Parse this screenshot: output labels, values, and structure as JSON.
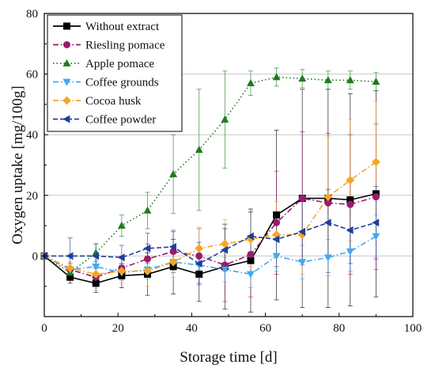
{
  "chart_data": {
    "type": "line",
    "xlabel": "Storage time [d]",
    "ylabel": "Oxygen uptake [mg/100g]",
    "xlim": [
      0,
      100
    ],
    "ylim": [
      -20,
      80
    ],
    "x_ticks": [
      0,
      20,
      40,
      60,
      80,
      100
    ],
    "y_ticks": [
      0,
      20,
      40,
      60,
      80
    ],
    "grid": "horizontal",
    "legend_position": "top-left",
    "series": [
      {
        "name": "Without extract",
        "color": "#000000",
        "marker": "square",
        "line_style": "solid",
        "x": [
          0,
          7,
          14,
          21,
          28,
          35,
          42,
          49,
          56,
          63,
          70,
          77,
          83,
          90
        ],
        "y": [
          0,
          -7,
          -9,
          -6.5,
          -6,
          -3.5,
          -6,
          -3.5,
          -1.5,
          13.5,
          19,
          19,
          18.5,
          20.5
        ],
        "err": [
          0,
          2,
          3,
          4,
          7,
          9,
          9,
          14,
          17,
          28,
          36,
          36,
          35,
          34
        ]
      },
      {
        "name": "Riesling pomace",
        "color": "#9b1b6e",
        "marker": "circle",
        "line_style": "dashdot",
        "x": [
          0,
          7,
          14,
          21,
          28,
          35,
          42,
          49,
          56,
          63,
          70,
          77,
          83,
          90
        ],
        "y": [
          0,
          -4.5,
          -7,
          -4,
          -1,
          1.5,
          0,
          -3,
          0.5,
          11,
          19,
          17.5,
          17,
          19.5
        ],
        "err": [
          0,
          2,
          3,
          4,
          5,
          7,
          9,
          12,
          14,
          17,
          22,
          23,
          23,
          24
        ]
      },
      {
        "name": "Apple pomace",
        "color": "#1f7a1f",
        "marker": "triangle-up",
        "line_style": "dotted",
        "x": [
          0,
          7,
          14,
          21,
          28,
          35,
          42,
          49,
          56,
          63,
          70,
          77,
          83,
          90
        ],
        "y": [
          0,
          -5.5,
          1,
          10,
          15,
          27,
          35,
          45,
          57,
          59,
          58.5,
          58,
          58,
          57.5
        ],
        "err": [
          0,
          2,
          3,
          3.5,
          6,
          13,
          20,
          16,
          4,
          3,
          3,
          3,
          3,
          3
        ]
      },
      {
        "name": "Coffee grounds",
        "color": "#3fa9f5",
        "marker": "triangle-down",
        "line_style": "dashdot",
        "x": [
          0,
          7,
          14,
          21,
          28,
          35,
          42,
          49,
          56,
          63,
          70,
          77,
          83,
          90
        ],
        "y": [
          0,
          -4.5,
          -3.5,
          -5.5,
          -4.5,
          -2,
          -3,
          -4.5,
          -6,
          0,
          -2,
          -0.5,
          1.5,
          6.5
        ],
        "err": [
          0,
          2,
          2,
          2.5,
          3,
          3.5,
          4,
          4,
          4.5,
          5,
          5.5,
          6,
          6.5,
          7
        ]
      },
      {
        "name": "Cocoa husk",
        "color": "#f5a623",
        "marker": "diamond",
        "line_style": "dashdot",
        "x": [
          0,
          7,
          14,
          21,
          28,
          35,
          42,
          49,
          56,
          63,
          70,
          77,
          83,
          90
        ],
        "y": [
          0,
          -4,
          -6,
          -5,
          -5,
          -2,
          2.5,
          4,
          5.5,
          7,
          7,
          19.5,
          25,
          31
        ],
        "err": [
          0,
          2,
          3,
          4,
          5,
          5,
          7,
          8,
          9,
          11,
          13,
          20,
          20,
          20
        ]
      },
      {
        "name": "Coffee powder",
        "color": "#1f3f99",
        "marker": "triangle-left",
        "line_style": "dashed",
        "x": [
          0,
          7,
          14,
          21,
          28,
          35,
          42,
          49,
          56,
          63,
          70,
          77,
          83,
          90
        ],
        "y": [
          0,
          0,
          0,
          -0.5,
          2.5,
          3,
          -2.5,
          2,
          6.5,
          5.5,
          8,
          11,
          8.5,
          11
        ],
        "err": [
          0,
          6,
          4,
          4,
          5,
          5,
          7,
          7,
          8,
          9,
          10,
          11,
          11,
          12
        ]
      }
    ]
  }
}
